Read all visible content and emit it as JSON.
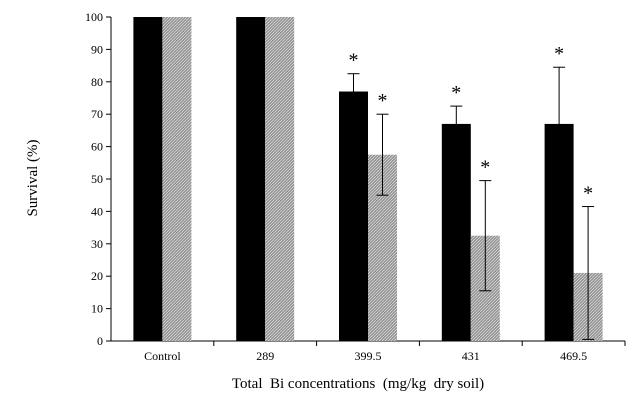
{
  "chart_data": {
    "type": "bar",
    "xlabel": "Total  Bi concentrations  (mg/kg  dry soil)",
    "ylabel": "Survival (%)",
    "ylim": [
      0,
      100
    ],
    "yticks": [
      0,
      10,
      20,
      30,
      40,
      50,
      60,
      70,
      80,
      90,
      100
    ],
    "categories": [
      "Control",
      "289",
      "399.5",
      "431",
      "469.5"
    ],
    "grid": false,
    "legend": "none",
    "series": [
      {
        "values": [
          100,
          100,
          77,
          67,
          67
        ],
        "error": [
          0,
          0,
          5.5,
          5.5,
          17.5
        ],
        "significant": [
          false,
          false,
          true,
          true,
          true
        ],
        "color": "#000000",
        "pattern": "solid"
      },
      {
        "values": [
          100,
          100,
          57.5,
          32.5,
          21
        ],
        "error": [
          0,
          0,
          12.5,
          17,
          20.5
        ],
        "significant": [
          false,
          false,
          true,
          true,
          true
        ],
        "color": "#7f7f7f",
        "pattern": "diagonal-hatch"
      }
    ],
    "significance_marker": "*"
  }
}
